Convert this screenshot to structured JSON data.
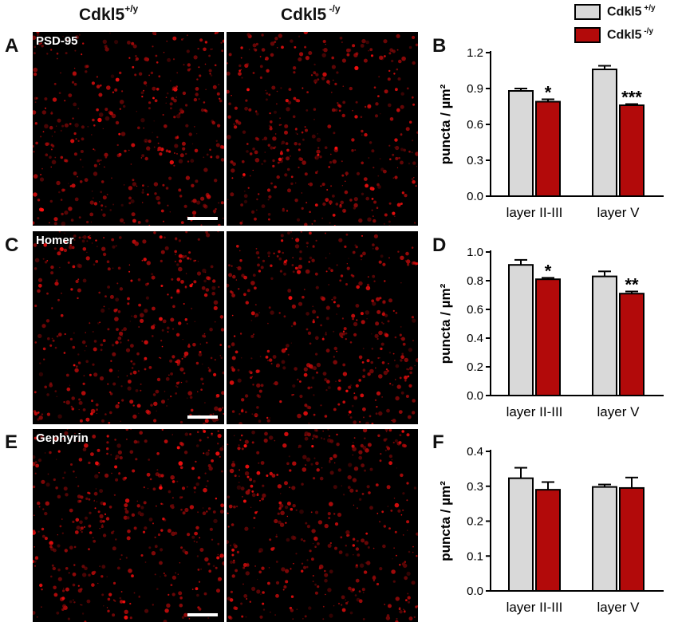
{
  "columns": {
    "wt_base": "Cdkl5",
    "wt_sup": "+/y",
    "ko_base": "Cdkl5",
    "ko_sup": " -/y"
  },
  "legend": [
    {
      "base": "Cdkl5",
      "sup": " +/y",
      "color": "#d9d9d9"
    },
    {
      "base": "Cdkl5",
      "sup": " -/y",
      "color": "#b20a0a"
    }
  ],
  "image_rows": [
    {
      "letter": "A",
      "label": "PSD-95"
    },
    {
      "letter": "C",
      "label": "Homer"
    },
    {
      "letter": "E",
      "label": "Gephyrin"
    }
  ],
  "chart_data": [
    {
      "panel": "B",
      "type": "bar",
      "categories": [
        "layer II-III",
        "layer V"
      ],
      "ylabel": "puncta / µm²",
      "ylim": [
        0,
        1.2
      ],
      "yticks": [
        "0.0",
        "0.3",
        "0.6",
        "0.9",
        "1.2"
      ],
      "series": [
        {
          "name": "Cdkl5 +/y",
          "values": [
            0.88,
            1.06
          ],
          "errors": [
            0.02,
            0.03
          ]
        },
        {
          "name": "Cdkl5 -/y",
          "values": [
            0.79,
            0.76
          ],
          "errors": [
            0.02,
            0.01
          ]
        }
      ],
      "significance": [
        "*",
        "***"
      ]
    },
    {
      "panel": "D",
      "type": "bar",
      "categories": [
        "layer II-III",
        "layer V"
      ],
      "ylabel": "puncta / µm²",
      "ylim": [
        0,
        1.0
      ],
      "yticks": [
        "0.0",
        "0.2",
        "0.4",
        "0.6",
        "0.8",
        "1.0"
      ],
      "series": [
        {
          "name": "Cdkl5 +/y",
          "values": [
            0.91,
            0.83
          ],
          "errors": [
            0.035,
            0.035
          ]
        },
        {
          "name": "Cdkl5 -/y",
          "values": [
            0.81,
            0.71
          ],
          "errors": [
            0.01,
            0.015
          ]
        }
      ],
      "significance": [
        "*",
        "**"
      ]
    },
    {
      "panel": "F",
      "type": "bar",
      "categories": [
        "layer II-III",
        "layer V"
      ],
      "ylabel": "puncta / µm²",
      "ylim": [
        0,
        0.4
      ],
      "yticks": [
        "0.0",
        "0.1",
        "0.2",
        "0.3",
        "0.4"
      ],
      "series": [
        {
          "name": "Cdkl5 +/y",
          "values": [
            0.323,
            0.298
          ],
          "errors": [
            0.03,
            0.007
          ]
        },
        {
          "name": "Cdkl5 -/y",
          "values": [
            0.29,
            0.295
          ],
          "errors": [
            0.022,
            0.03
          ]
        }
      ],
      "significance": [
        "",
        ""
      ]
    }
  ]
}
